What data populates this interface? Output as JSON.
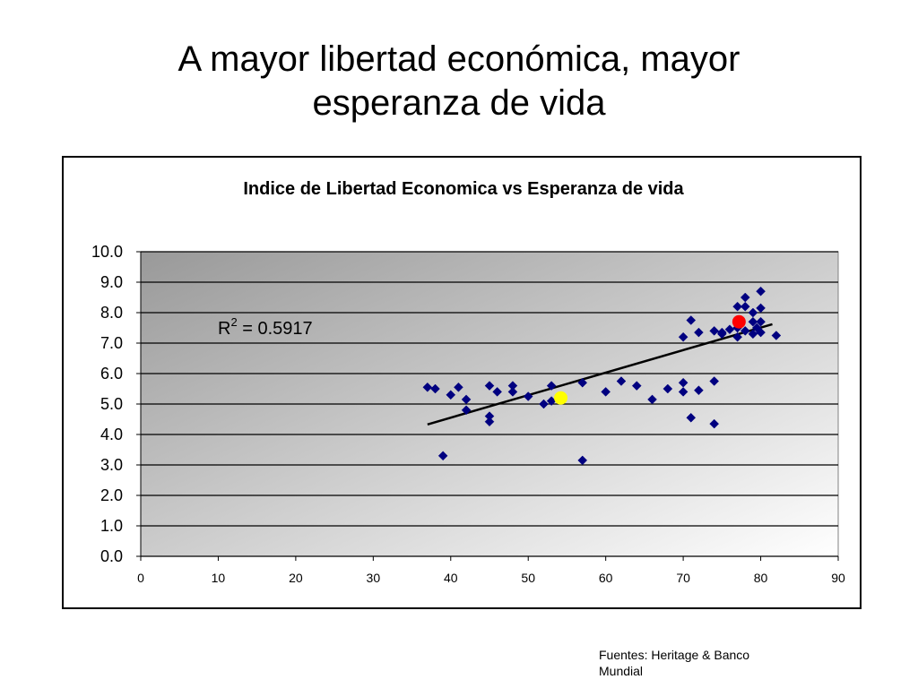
{
  "slide": {
    "title_line1": "A mayor libertad económica, mayor",
    "title_line2": "esperanza de vida",
    "source_line1": "Fuentes: Heritage & Banco",
    "source_line2": "Mundial"
  },
  "chart_data": {
    "type": "scatter",
    "title": "Indice de Libertad Economica vs Esperanza de vida",
    "xlabel": "",
    "ylabel": "",
    "xlim": [
      0,
      90
    ],
    "ylim": [
      0,
      10
    ],
    "x_ticks": [
      "0",
      "10",
      "20",
      "30",
      "40",
      "50",
      "60",
      "70",
      "80",
      "90"
    ],
    "y_ticks": [
      "0.0",
      "1.0",
      "2.0",
      "3.0",
      "4.0",
      "5.0",
      "6.0",
      "7.0",
      "8.0",
      "9.0",
      "10.0"
    ],
    "grid": "horizontal",
    "legend": "none",
    "colors": {
      "points": "#000080",
      "trendline": "#000000",
      "highlight_red": "#ff0000",
      "highlight_yellow": "#ffff00",
      "plot_bg_dark": "#9a9a9a",
      "plot_bg_light": "#ffffff"
    },
    "r_squared_prefix": "R",
    "r_squared_exp": "2",
    "r_squared_value": " = 0.5917",
    "trendline": {
      "x": [
        37,
        81.5
      ],
      "y": [
        4.33,
        7.62
      ]
    },
    "series": [
      {
        "points": [
          {
            "x": 37,
            "y": 5.55
          },
          {
            "x": 38,
            "y": 5.5
          },
          {
            "x": 39,
            "y": 3.3
          },
          {
            "x": 40,
            "y": 5.3
          },
          {
            "x": 41,
            "y": 5.55
          },
          {
            "x": 42,
            "y": 5.15
          },
          {
            "x": 42,
            "y": 4.8
          },
          {
            "x": 45,
            "y": 5.6
          },
          {
            "x": 45,
            "y": 4.6
          },
          {
            "x": 45,
            "y": 4.42
          },
          {
            "x": 46,
            "y": 5.4
          },
          {
            "x": 48,
            "y": 5.6
          },
          {
            "x": 48,
            "y": 5.4
          },
          {
            "x": 50,
            "y": 5.25
          },
          {
            "x": 52,
            "y": 5.0
          },
          {
            "x": 53,
            "y": 5.1
          },
          {
            "x": 53,
            "y": 5.6
          },
          {
            "x": 57,
            "y": 5.7
          },
          {
            "x": 57,
            "y": 3.15
          },
          {
            "x": 60,
            "y": 5.4
          },
          {
            "x": 62,
            "y": 5.75
          },
          {
            "x": 64,
            "y": 5.6
          },
          {
            "x": 66,
            "y": 5.15
          },
          {
            "x": 68,
            "y": 5.5
          },
          {
            "x": 70,
            "y": 5.7
          },
          {
            "x": 70,
            "y": 5.4
          },
          {
            "x": 70,
            "y": 7.2
          },
          {
            "x": 71,
            "y": 7.75
          },
          {
            "x": 71,
            "y": 4.55
          },
          {
            "x": 72,
            "y": 7.35
          },
          {
            "x": 72,
            "y": 5.45
          },
          {
            "x": 74,
            "y": 7.4
          },
          {
            "x": 74,
            "y": 5.75
          },
          {
            "x": 74,
            "y": 4.35
          },
          {
            "x": 75,
            "y": 7.35
          },
          {
            "x": 75,
            "y": 7.3
          },
          {
            "x": 76,
            "y": 7.45
          },
          {
            "x": 77,
            "y": 8.2
          },
          {
            "x": 77,
            "y": 7.2
          },
          {
            "x": 77,
            "y": 7.5
          },
          {
            "x": 78,
            "y": 8.5
          },
          {
            "x": 78,
            "y": 8.2
          },
          {
            "x": 78,
            "y": 7.4
          },
          {
            "x": 79,
            "y": 8.0
          },
          {
            "x": 79,
            "y": 7.7
          },
          {
            "x": 79,
            "y": 7.3
          },
          {
            "x": 79.5,
            "y": 7.5
          },
          {
            "x": 80,
            "y": 8.7
          },
          {
            "x": 80,
            "y": 8.15
          },
          {
            "x": 80,
            "y": 7.7
          },
          {
            "x": 80,
            "y": 7.35
          },
          {
            "x": 82,
            "y": 7.25
          }
        ]
      }
    ],
    "highlights": [
      {
        "x": 54.2,
        "y": 5.2,
        "color": "#ffff00"
      },
      {
        "x": 77.2,
        "y": 7.7,
        "color": "#ff0000"
      }
    ]
  }
}
